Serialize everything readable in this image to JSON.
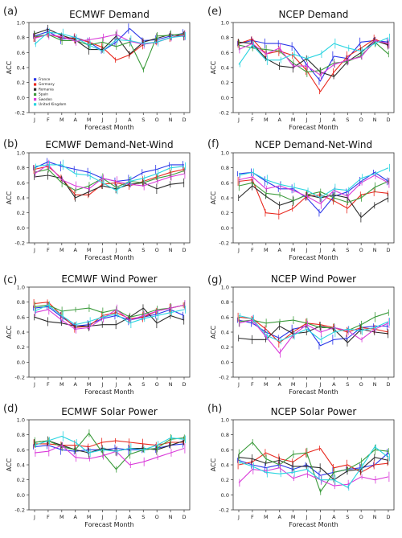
{
  "colors": {
    "France": "#2a36e8",
    "Germany": "#e8281e",
    "Romania": "#2b2b2b",
    "Spain": "#3a9a3a",
    "Sweden": "#d93ad9",
    "United Kingdom": "#29d4e0"
  },
  "legend_entries": [
    "France",
    "Germany",
    "Romania",
    "Spain",
    "Sweden",
    "United Kingdom"
  ],
  "chart_data": [
    {
      "type": "line",
      "panel": "(a)",
      "title": "ECMWF Demand",
      "xlabel": "Forecast Month",
      "ylabel": "ACC",
      "categories": [
        "J",
        "F",
        "M",
        "A",
        "M",
        "J",
        "J",
        "A",
        "S",
        "O",
        "N",
        "D"
      ],
      "ylim": [
        -0.2,
        1.0
      ],
      "yticks": [
        "-0.2",
        "0.0",
        "0.2",
        "0.4",
        "0.6",
        "0.8",
        "1.0"
      ],
      "legend": "lower-left",
      "series": [
        {
          "name": "France",
          "values": [
            0.82,
            0.88,
            0.78,
            0.8,
            0.74,
            0.62,
            0.74,
            0.92,
            0.76,
            0.77,
            0.82,
            0.86
          ]
        },
        {
          "name": "Germany",
          "values": [
            0.8,
            0.84,
            0.8,
            0.79,
            0.74,
            0.67,
            0.5,
            0.57,
            0.71,
            0.74,
            0.8,
            0.84
          ]
        },
        {
          "name": "Romania",
          "values": [
            0.85,
            0.91,
            0.83,
            0.77,
            0.64,
            0.64,
            0.82,
            0.58,
            0.74,
            0.79,
            0.84,
            0.82
          ]
        },
        {
          "name": "Spain",
          "values": [
            0.81,
            0.84,
            0.76,
            0.76,
            0.7,
            0.74,
            0.68,
            0.74,
            0.37,
            0.82,
            0.83,
            0.85
          ]
        },
        {
          "name": "Sweden",
          "values": [
            0.79,
            0.84,
            0.81,
            0.75,
            0.77,
            0.8,
            0.84,
            0.75,
            0.71,
            0.74,
            0.8,
            0.83
          ]
        },
        {
          "name": "United Kingdom",
          "values": [
            0.71,
            0.87,
            0.85,
            0.8,
            0.7,
            0.62,
            0.77,
            0.76,
            0.72,
            0.74,
            0.8,
            0.82
          ]
        }
      ]
    },
    {
      "type": "line",
      "panel": "(e)",
      "title": "NCEP Demand",
      "xlabel": "Forecast Month",
      "ylabel": "ACC",
      "categories": [
        "J",
        "F",
        "M",
        "A",
        "M",
        "J",
        "J",
        "A",
        "S",
        "O",
        "N",
        "D"
      ],
      "ylim": [
        -0.2,
        1.0
      ],
      "yticks": [
        "-0.2",
        "0.0",
        "0.2",
        "0.4",
        "0.6",
        "0.8",
        "1.0"
      ],
      "series": [
        {
          "name": "France",
          "values": [
            0.72,
            0.76,
            0.72,
            0.72,
            0.68,
            0.44,
            0.22,
            0.55,
            0.52,
            0.74,
            0.76,
            0.74
          ]
        },
        {
          "name": "Germany",
          "values": [
            0.72,
            0.78,
            0.58,
            0.62,
            0.56,
            0.36,
            0.08,
            0.34,
            0.55,
            0.66,
            0.78,
            0.7
          ]
        },
        {
          "name": "Romania",
          "values": [
            0.74,
            0.72,
            0.52,
            0.42,
            0.4,
            0.52,
            0.34,
            0.28,
            0.48,
            0.6,
            0.76,
            0.7
          ]
        },
        {
          "name": "Spain",
          "values": [
            0.7,
            0.66,
            0.64,
            0.62,
            0.46,
            0.34,
            0.36,
            0.46,
            0.48,
            0.56,
            0.74,
            0.58
          ]
        },
        {
          "name": "Sweden",
          "values": [
            0.64,
            0.72,
            0.58,
            0.66,
            0.42,
            0.42,
            0.3,
            0.44,
            0.5,
            0.54,
            0.76,
            0.72
          ]
        },
        {
          "name": "United Kingdom",
          "values": [
            0.44,
            0.7,
            0.5,
            0.5,
            0.58,
            0.52,
            0.58,
            0.72,
            0.66,
            0.62,
            0.72,
            0.8
          ]
        }
      ]
    },
    {
      "type": "line",
      "panel": "(b)",
      "title": "ECMWF Demand-Net-Wind",
      "xlabel": "Forecast Month",
      "ylabel": "ACC",
      "categories": [
        "J",
        "F",
        "M",
        "A",
        "M",
        "J",
        "J",
        "A",
        "S",
        "O",
        "N",
        "D"
      ],
      "ylim": [
        -0.2,
        1.0
      ],
      "yticks": [
        "-0.2",
        "0.0",
        "0.2",
        "0.4",
        "0.6",
        "0.8",
        "1.0"
      ],
      "series": [
        {
          "name": "France",
          "values": [
            0.8,
            0.88,
            0.82,
            0.78,
            0.74,
            0.66,
            0.62,
            0.64,
            0.74,
            0.78,
            0.84,
            0.84
          ]
        },
        {
          "name": "Germany",
          "values": [
            0.78,
            0.82,
            0.66,
            0.44,
            0.44,
            0.58,
            0.6,
            0.56,
            0.62,
            0.68,
            0.74,
            0.78
          ]
        },
        {
          "name": "Romania",
          "values": [
            0.68,
            0.7,
            0.66,
            0.4,
            0.48,
            0.56,
            0.52,
            0.58,
            0.6,
            0.52,
            0.58,
            0.6
          ]
        },
        {
          "name": "Spain",
          "values": [
            0.74,
            0.78,
            0.6,
            0.5,
            0.56,
            0.66,
            0.54,
            0.62,
            0.6,
            0.66,
            0.7,
            0.76
          ]
        },
        {
          "name": "Sweden",
          "values": [
            0.72,
            0.84,
            0.64,
            0.56,
            0.52,
            0.66,
            0.62,
            0.58,
            0.56,
            0.62,
            0.68,
            0.72
          ]
        },
        {
          "name": "United Kingdom",
          "values": [
            0.82,
            0.84,
            0.84,
            0.72,
            0.7,
            0.6,
            0.5,
            0.62,
            0.66,
            0.72,
            0.8,
            0.82
          ]
        }
      ]
    },
    {
      "type": "line",
      "panel": "(f)",
      "title": "NCEP Demand-Net-Wind",
      "xlabel": "Forecast Month",
      "ylabel": "ACC",
      "categories": [
        "J",
        "F",
        "M",
        "A",
        "M",
        "J",
        "J",
        "A",
        "S",
        "O",
        "N",
        "D"
      ],
      "ylim": [
        -0.2,
        1.0
      ],
      "yticks": [
        "-0.2",
        "0.0",
        "0.2",
        "0.4",
        "0.6",
        "0.8",
        "1.0"
      ],
      "series": [
        {
          "name": "France",
          "values": [
            0.72,
            0.74,
            0.62,
            0.52,
            0.52,
            0.4,
            0.2,
            0.42,
            0.48,
            0.62,
            0.74,
            0.62
          ]
        },
        {
          "name": "Germany",
          "values": [
            0.62,
            0.64,
            0.2,
            0.18,
            0.26,
            0.42,
            0.44,
            0.36,
            0.26,
            0.44,
            0.48,
            0.46
          ]
        },
        {
          "name": "Romania",
          "values": [
            0.4,
            0.56,
            0.42,
            0.3,
            0.36,
            0.44,
            0.4,
            0.44,
            0.4,
            0.14,
            0.3,
            0.4
          ]
        },
        {
          "name": "Spain",
          "values": [
            0.56,
            0.6,
            0.46,
            0.44,
            0.36,
            0.44,
            0.48,
            0.4,
            0.34,
            0.4,
            0.54,
            0.62
          ]
        },
        {
          "name": "Sweden",
          "values": [
            0.64,
            0.68,
            0.52,
            0.56,
            0.5,
            0.42,
            0.32,
            0.5,
            0.42,
            0.6,
            0.7,
            0.6
          ]
        },
        {
          "name": "United Kingdom",
          "values": [
            0.7,
            0.74,
            0.64,
            0.58,
            0.54,
            0.5,
            0.4,
            0.52,
            0.5,
            0.66,
            0.72,
            0.8
          ]
        }
      ]
    },
    {
      "type": "line",
      "panel": "(c)",
      "title": "ECMWF Wind Power",
      "xlabel": "Forecast Month",
      "ylabel": "ACC",
      "categories": [
        "J",
        "F",
        "M",
        "A",
        "M",
        "J",
        "J",
        "A",
        "S",
        "O",
        "N",
        "D"
      ],
      "ylim": [
        -0.2,
        1.0
      ],
      "yticks": [
        "-0.2",
        "0.0",
        "0.2",
        "0.4",
        "0.6",
        "0.8",
        "1.0"
      ],
      "series": [
        {
          "name": "France",
          "values": [
            0.72,
            0.74,
            0.6,
            0.48,
            0.5,
            0.58,
            0.62,
            0.56,
            0.6,
            0.64,
            0.7,
            0.62
          ]
        },
        {
          "name": "Germany",
          "values": [
            0.78,
            0.8,
            0.62,
            0.46,
            0.48,
            0.62,
            0.66,
            0.58,
            0.6,
            0.68,
            0.72,
            0.76
          ]
        },
        {
          "name": "Romania",
          "values": [
            0.6,
            0.54,
            0.52,
            0.48,
            0.48,
            0.5,
            0.5,
            0.6,
            0.72,
            0.52,
            0.62,
            0.56
          ]
        },
        {
          "name": "Spain",
          "values": [
            0.74,
            0.76,
            0.68,
            0.7,
            0.72,
            0.66,
            0.7,
            0.6,
            0.64,
            0.7,
            0.72,
            0.76
          ]
        },
        {
          "name": "Sweden",
          "values": [
            0.66,
            0.7,
            0.56,
            0.44,
            0.46,
            0.58,
            0.7,
            0.56,
            0.62,
            0.68,
            0.72,
            0.76
          ]
        },
        {
          "name": "United Kingdom",
          "values": [
            0.68,
            0.76,
            0.62,
            0.5,
            0.54,
            0.6,
            0.64,
            0.52,
            0.58,
            0.62,
            0.66,
            0.7
          ]
        }
      ]
    },
    {
      "type": "line",
      "panel": "(g)",
      "title": "NCEP Wind Power",
      "xlabel": "Forecast Month",
      "ylabel": "ACC",
      "categories": [
        "J",
        "F",
        "M",
        "A",
        "M",
        "J",
        "J",
        "A",
        "S",
        "O",
        "N",
        "D"
      ],
      "ylim": [
        -0.2,
        1.0
      ],
      "yticks": [
        "-0.2",
        "0.0",
        "0.2",
        "0.4",
        "0.6",
        "0.8",
        "1.0"
      ],
      "series": [
        {
          "name": "France",
          "values": [
            0.56,
            0.52,
            0.4,
            0.32,
            0.44,
            0.48,
            0.22,
            0.3,
            0.32,
            0.46,
            0.48,
            0.48
          ]
        },
        {
          "name": "Germany",
          "values": [
            0.6,
            0.58,
            0.44,
            0.26,
            0.4,
            0.52,
            0.5,
            0.46,
            0.4,
            0.46,
            0.44,
            0.4
          ]
        },
        {
          "name": "Romania",
          "values": [
            0.32,
            0.3,
            0.3,
            0.48,
            0.38,
            0.4,
            0.48,
            0.44,
            0.26,
            0.44,
            0.4,
            0.38
          ]
        },
        {
          "name": "Spain",
          "values": [
            0.54,
            0.56,
            0.52,
            0.54,
            0.56,
            0.52,
            0.46,
            0.46,
            0.42,
            0.5,
            0.6,
            0.66
          ]
        },
        {
          "name": "Sweden",
          "values": [
            0.52,
            0.56,
            0.34,
            0.12,
            0.36,
            0.5,
            0.4,
            0.46,
            0.42,
            0.3,
            0.44,
            0.52
          ]
        },
        {
          "name": "United Kingdom",
          "values": [
            0.62,
            0.58,
            0.36,
            0.28,
            0.36,
            0.44,
            0.3,
            0.4,
            0.44,
            0.42,
            0.46,
            0.54
          ]
        }
      ]
    },
    {
      "type": "line",
      "panel": "(d)",
      "title": "ECMWF Solar Power",
      "xlabel": "Forecast Month",
      "ylabel": "ACC",
      "categories": [
        "J",
        "F",
        "M",
        "A",
        "M",
        "J",
        "J",
        "A",
        "S",
        "O",
        "N",
        "D"
      ],
      "ylim": [
        -0.2,
        1.0
      ],
      "yticks": [
        "-0.2",
        "0.0",
        "0.2",
        "0.4",
        "0.6",
        "0.8",
        "1.0"
      ],
      "series": [
        {
          "name": "France",
          "values": [
            0.64,
            0.66,
            0.6,
            0.58,
            0.6,
            0.6,
            0.62,
            0.6,
            0.6,
            0.62,
            0.66,
            0.68
          ]
        },
        {
          "name": "Germany",
          "values": [
            0.68,
            0.68,
            0.66,
            0.66,
            0.64,
            0.7,
            0.72,
            0.7,
            0.68,
            0.66,
            0.7,
            0.7
          ]
        },
        {
          "name": "Romania",
          "values": [
            0.7,
            0.72,
            0.66,
            0.6,
            0.56,
            0.62,
            0.58,
            0.62,
            0.62,
            0.6,
            0.66,
            0.72
          ]
        },
        {
          "name": "Spain",
          "values": [
            0.7,
            0.72,
            0.64,
            0.6,
            0.82,
            0.56,
            0.34,
            0.54,
            0.6,
            0.62,
            0.74,
            0.76
          ]
        },
        {
          "name": "Sweden",
          "values": [
            0.56,
            0.58,
            0.66,
            0.5,
            0.48,
            0.52,
            0.58,
            0.4,
            0.44,
            0.5,
            0.56,
            0.62
          ]
        },
        {
          "name": "United Kingdom",
          "values": [
            0.66,
            0.72,
            0.78,
            0.7,
            0.56,
            0.6,
            0.58,
            0.62,
            0.6,
            0.66,
            0.76,
            0.74
          ]
        }
      ]
    },
    {
      "type": "line",
      "panel": "(h)",
      "title": "NCEP Solar Power",
      "xlabel": "Forecast Month",
      "ylabel": "ACC",
      "categories": [
        "J",
        "F",
        "M",
        "A",
        "M",
        "J",
        "J",
        "A",
        "S",
        "O",
        "N",
        "D"
      ],
      "ylim": [
        -0.2,
        1.0
      ],
      "yticks": [
        "-0.2",
        "0.0",
        "0.2",
        "0.4",
        "0.6",
        "0.8",
        "1.0"
      ],
      "series": [
        {
          "name": "France",
          "values": [
            0.46,
            0.4,
            0.36,
            0.4,
            0.34,
            0.4,
            0.26,
            0.3,
            0.34,
            0.36,
            0.4,
            0.56
          ]
        },
        {
          "name": "Germany",
          "values": [
            0.4,
            0.44,
            0.56,
            0.48,
            0.44,
            0.56,
            0.62,
            0.36,
            0.4,
            0.3,
            0.4,
            0.42
          ]
        },
        {
          "name": "Romania",
          "values": [
            0.5,
            0.48,
            0.42,
            0.46,
            0.38,
            0.38,
            0.36,
            0.2,
            0.32,
            0.34,
            0.5,
            0.46
          ]
        },
        {
          "name": "Spain",
          "values": [
            0.54,
            0.7,
            0.48,
            0.4,
            0.54,
            0.56,
            0.04,
            0.3,
            0.34,
            0.44,
            0.6,
            0.58
          ]
        },
        {
          "name": "Sweden",
          "values": [
            0.16,
            0.34,
            0.32,
            0.36,
            0.22,
            0.28,
            0.2,
            0.12,
            0.14,
            0.24,
            0.2,
            0.24
          ]
        },
        {
          "name": "United Kingdom",
          "values": [
            0.44,
            0.38,
            0.3,
            0.28,
            0.3,
            0.34,
            0.2,
            0.2,
            0.1,
            0.36,
            0.64,
            0.5
          ]
        }
      ]
    }
  ]
}
